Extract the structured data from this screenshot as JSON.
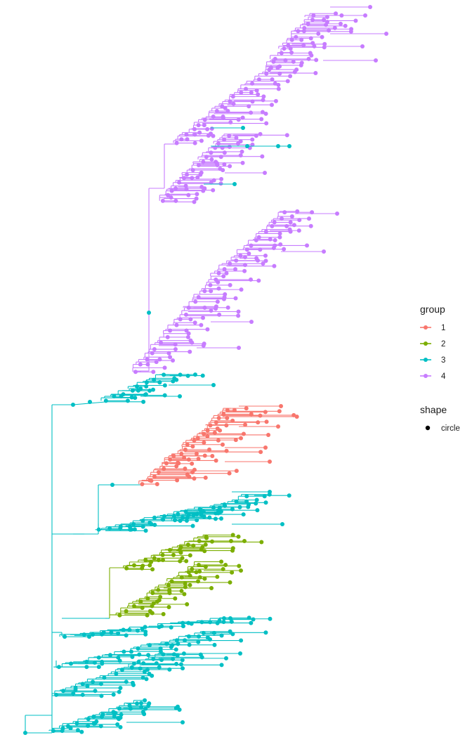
{
  "chart_data": {
    "type": "tree",
    "title": "",
    "xlabel": "",
    "ylabel": "",
    "axes_shown": false,
    "grid": false,
    "legend_position": "right",
    "clades": [
      {
        "group": "4",
        "label": "upper purple clade"
      },
      {
        "group": "4",
        "label": "middle purple clade"
      },
      {
        "group": "3",
        "label": "teal stem near root of purple clades"
      },
      {
        "group": "1",
        "label": "red clade"
      },
      {
        "group": "3",
        "label": "teal clade below red"
      },
      {
        "group": "2",
        "label": "green clade"
      },
      {
        "group": "3",
        "label": "teal basal clades"
      }
    ]
  },
  "legend": {
    "group": {
      "title": "group",
      "items": [
        {
          "label": "1",
          "color": "#F8766D"
        },
        {
          "label": "2",
          "color": "#7CAE00"
        },
        {
          "label": "3",
          "color": "#00BFC4"
        },
        {
          "label": "4",
          "color": "#C77CFF"
        }
      ]
    },
    "shape": {
      "title": "shape",
      "items": [
        {
          "label": "circle",
          "color": "#000000"
        }
      ]
    }
  },
  "colors": {
    "group_1": "#F8766D",
    "group_2": "#7CAE00",
    "group_3": "#00BFC4",
    "group_4": "#C77CFF"
  }
}
